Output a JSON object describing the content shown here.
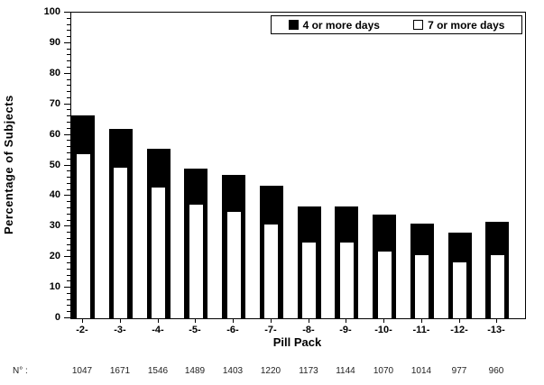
{
  "chart_data": {
    "type": "bar",
    "subtype": "overlaid-bars-black-total-white-front",
    "title": "",
    "xlabel": "Pill Pack",
    "ylabel": "Percentage of Subjects",
    "ylim": [
      0,
      100
    ],
    "y_major_step": 10,
    "y_minor_step": 2,
    "grid": false,
    "legend_position": "top-right",
    "categories": [
      "-2-",
      "-3-",
      "-4-",
      "-5-",
      "-6-",
      "-7-",
      "-8-",
      "-9-",
      "-10-",
      "-11-",
      "-12-",
      "-13-"
    ],
    "series": [
      {
        "name": "4 or more days",
        "fill": "#000000",
        "values": [
          66.5,
          62,
          55.5,
          49,
          47,
          43.5,
          36.5,
          36.5,
          34,
          31,
          28,
          31.5
        ]
      },
      {
        "name": "7 or more days",
        "fill": "#ffffff",
        "values": [
          54,
          49.5,
          43,
          37.5,
          35,
          31,
          25,
          25,
          22,
          21,
          18.5,
          21
        ]
      }
    ],
    "n_row": {
      "label": "N° :",
      "values": [
        "1047",
        "1671",
        "1546",
        "1489",
        "1403",
        "1220",
        "1173",
        "1144",
        "1070",
        "1014",
        "977",
        "960"
      ]
    }
  },
  "colors": {
    "foreground": "#000000",
    "background": "#ffffff"
  }
}
